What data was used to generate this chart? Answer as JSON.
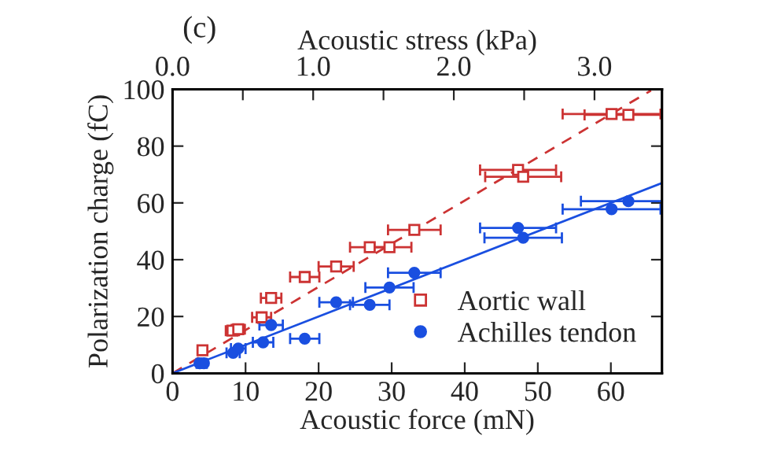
{
  "chart_data": {
    "type": "scatter",
    "title": "(c)",
    "xlabel": "Acoustic force (mN)",
    "ylabel": "Polarization charge (fC)",
    "x2label": "Acoustic stress (kPa)",
    "xlim": [
      0,
      67
    ],
    "xticks": [
      0,
      10,
      20,
      30,
      40,
      50,
      60
    ],
    "ylim": [
      0,
      100
    ],
    "yticks": [
      0,
      20,
      40,
      60,
      80,
      100
    ],
    "x2lim": [
      0,
      3.48
    ],
    "x2ticks": [
      {
        "value": 0,
        "label": "0.0"
      },
      {
        "value": 0.5,
        "label": null
      },
      {
        "value": 1,
        "label": "1.0"
      },
      {
        "value": 1.5,
        "label": null
      },
      {
        "value": 2,
        "label": "2.0"
      },
      {
        "value": 2.5,
        "label": null
      },
      {
        "value": 3,
        "label": "3.0"
      }
    ],
    "grid": false,
    "legend": "bottom right",
    "series": [
      {
        "name": "Aortic wall",
        "color": "#cc3333",
        "marker": "square",
        "x": [
          4.1,
          8.2,
          9.0,
          12.2,
          13.5,
          18.1,
          22.4,
          27.0,
          29.7,
          33.1,
          47.3,
          48.0,
          60.1,
          62.4
        ],
        "values": [
          8.1,
          15,
          15.5,
          19.7,
          26.5,
          33.9,
          37.6,
          44.4,
          44.4,
          50.5,
          71.6,
          69.2,
          91.3,
          91.0
        ],
        "xerrors": [
          0.4,
          0.9,
          0.9,
          1.3,
          1.4,
          2,
          2.4,
          2.7,
          3,
          3.6,
          5.2,
          5.2,
          6.7,
          6
        ]
      },
      {
        "name": "Achilles tendon",
        "color": "#1a4fe0",
        "marker": "circle",
        "x": [
          3.7,
          4.3,
          8.3,
          9.0,
          12.4,
          13.5,
          18.1,
          22.4,
          27.0,
          29.7,
          33.1,
          47.3,
          48.0,
          60.1,
          62.4
        ],
        "values": [
          3.5,
          3.5,
          7.2,
          8.7,
          10.9,
          17,
          12.2,
          25,
          24.1,
          30.2,
          35.4,
          51.2,
          47.7,
          57.8,
          60.6
        ],
        "xerrors": [
          0.4,
          0.4,
          0.9,
          1,
          1.4,
          1.6,
          2,
          2.3,
          2.7,
          3.3,
          3.6,
          5.2,
          5.3,
          6.7,
          6.5
        ]
      },
      {
        "type": "line",
        "color": "#cc3333",
        "line_style": "dashed",
        "x": [
          0,
          65.5
        ],
        "values": [
          0,
          99.6
        ]
      },
      {
        "type": "line",
        "color": "#1a4fe0",
        "line_style": "solid",
        "x": [
          0,
          67
        ],
        "values": [
          0,
          67
        ]
      }
    ]
  }
}
